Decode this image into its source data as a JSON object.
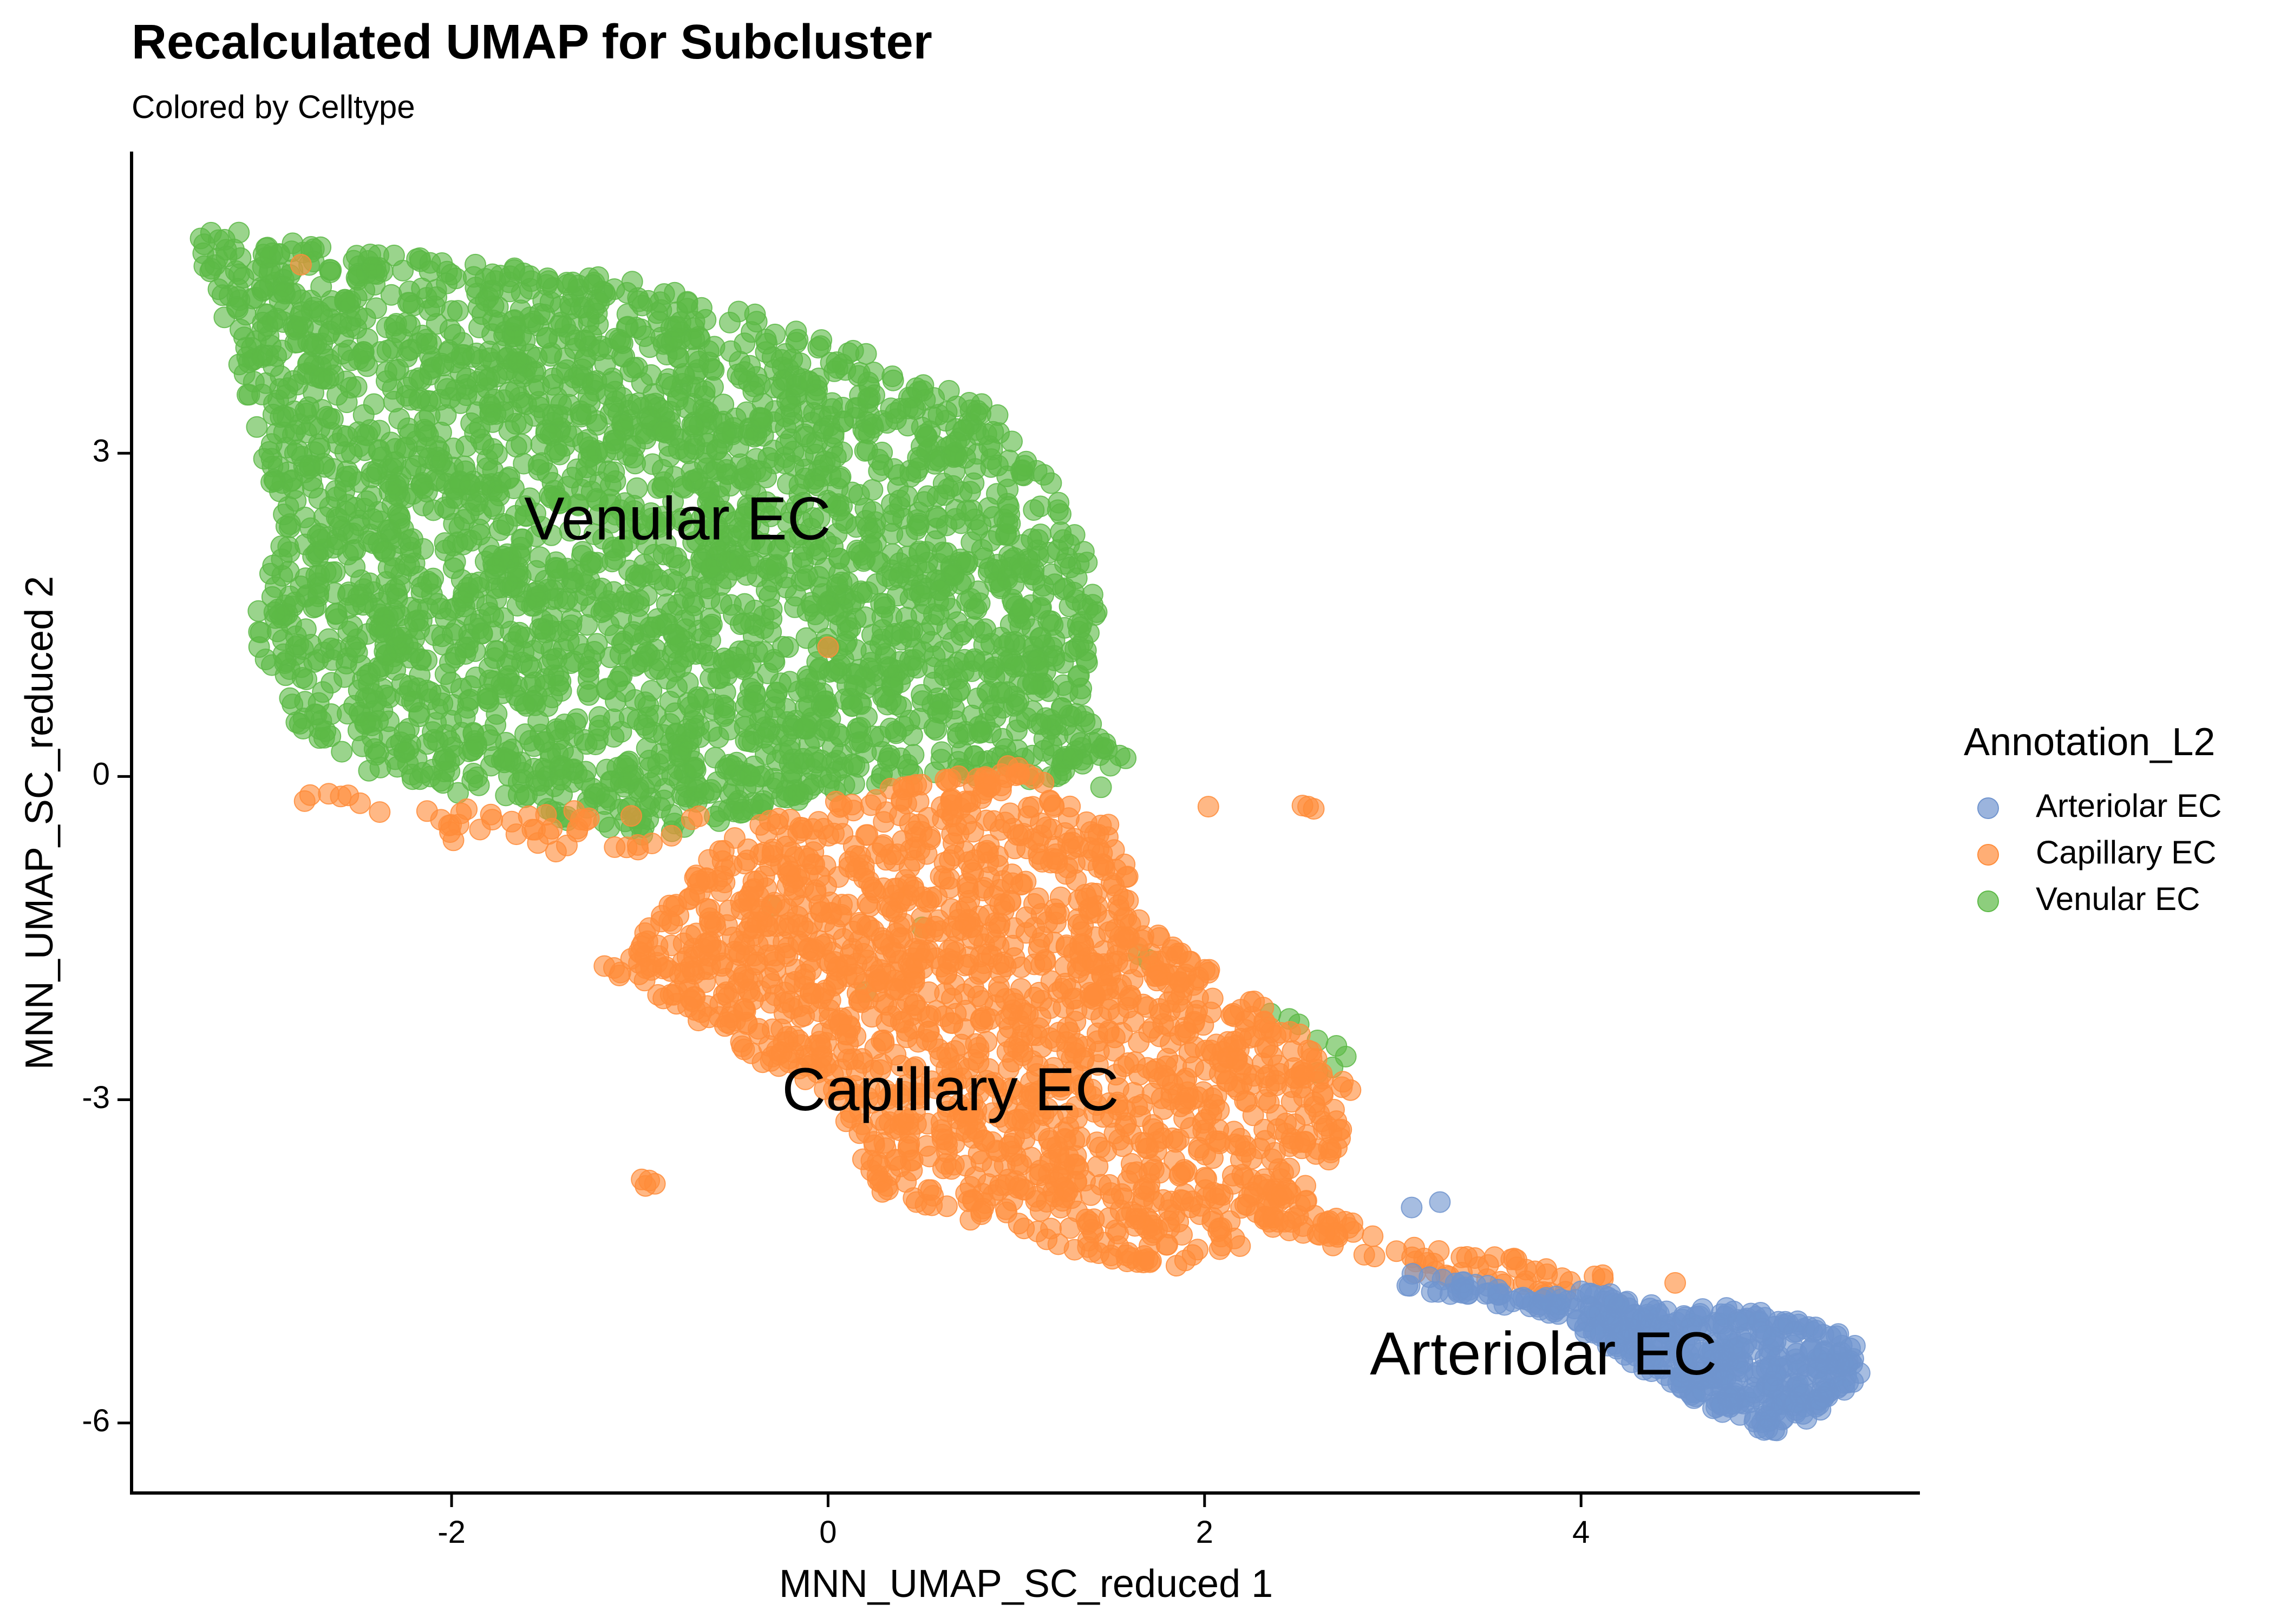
{
  "chart_data": {
    "type": "scatter",
    "title": "Recalculated UMAP for Subcluster",
    "subtitle": "Colored by Celltype",
    "xlabel": "MNN_UMAP_SC_reduced 1",
    "ylabel": "MNN_UMAP_SC_reduced 2",
    "xlim": [
      -3.7,
      5.8
    ],
    "ylim": [
      -6.65,
      5.8
    ],
    "x_ticks": [
      -2,
      0,
      2,
      4
    ],
    "y_ticks": [
      -6,
      -3,
      0,
      3
    ],
    "x_tick_labels": [
      "-2",
      "0",
      "2",
      "4"
    ],
    "y_tick_labels": [
      "-6",
      "-3",
      "0",
      "3"
    ],
    "grid": false,
    "legend": {
      "title": "Annotation_L2",
      "position": "right",
      "entries": [
        "Arteriolar EC",
        "Capillary EC",
        "Venular EC"
      ]
    },
    "series": [
      {
        "name": "Arteriolar EC",
        "color": "#7094CE",
        "label": "Arteriolar EC",
        "label_position": [
          3.8,
          -5.4
        ],
        "regions": [
          {
            "polygon": [
              [
                4.0,
                -4.75
              ],
              [
                4.5,
                -4.9
              ],
              [
                5.0,
                -4.95
              ],
              [
                5.45,
                -5.2
              ],
              [
                5.5,
                -5.55
              ],
              [
                5.2,
                -6.0
              ],
              [
                5.0,
                -6.1
              ],
              [
                4.6,
                -5.8
              ],
              [
                4.1,
                -5.25
              ],
              [
                3.8,
                -4.95
              ]
            ],
            "count": 420
          },
          {
            "polygon": [
              [
                3.05,
                -4.6
              ],
              [
                3.6,
                -4.75
              ],
              [
                4.0,
                -4.85
              ],
              [
                3.9,
                -5.0
              ],
              [
                3.4,
                -4.85
              ],
              [
                3.05,
                -4.75
              ]
            ],
            "count": 45
          }
        ],
        "points": [
          [
            3.1,
            -4.0
          ],
          [
            3.25,
            -3.95
          ],
          [
            4.55,
            -5.25
          ],
          [
            5.3,
            -5.45
          ]
        ]
      },
      {
        "name": "Capillary EC",
        "color": "#FF8C3A",
        "label": "Capillary EC",
        "label_position": [
          0.65,
          -2.95
        ],
        "regions": [
          {
            "polygon": [
              [
                -1.0,
                -1.5
              ],
              [
                -0.5,
                -0.5
              ],
              [
                0.3,
                -0.1
              ],
              [
                1.0,
                0.15
              ],
              [
                1.5,
                -0.45
              ],
              [
                1.7,
                -1.4
              ],
              [
                2.3,
                -2.1
              ],
              [
                2.8,
                -2.8
              ],
              [
                2.7,
                -3.5
              ],
              [
                2.25,
                -4.35
              ],
              [
                1.75,
                -4.6
              ],
              [
                1.1,
                -4.3
              ],
              [
                0.3,
                -3.9
              ],
              [
                0.0,
                -3.0
              ],
              [
                -0.5,
                -2.5
              ],
              [
                -1.2,
                -1.75
              ]
            ],
            "count": 1700
          },
          {
            "polygon": [
              [
                2.3,
                -3.7
              ],
              [
                3.0,
                -4.3
              ],
              [
                3.75,
                -4.5
              ],
              [
                4.2,
                -4.65
              ],
              [
                3.9,
                -4.85
              ],
              [
                3.1,
                -4.6
              ],
              [
                2.3,
                -4.2
              ]
            ],
            "count": 85
          },
          {
            "polygon": [
              [
                -2.8,
                -0.05
              ],
              [
                -2.2,
                -0.3
              ],
              [
                -1.3,
                -0.3
              ],
              [
                -0.6,
                -0.35
              ],
              [
                -0.7,
                -0.7
              ],
              [
                -1.5,
                -0.7
              ],
              [
                -2.3,
                -0.55
              ],
              [
                -2.8,
                -0.3
              ]
            ],
            "count": 45
          }
        ],
        "points": [
          [
            -0.95,
            -3.75
          ],
          [
            -0.97,
            -3.8
          ],
          [
            -0.92,
            -3.78
          ],
          [
            -0.99,
            -3.74
          ],
          [
            2.55,
            -0.28
          ],
          [
            2.58,
            -0.3
          ],
          [
            2.52,
            -0.27
          ],
          [
            2.02,
            -0.28
          ],
          [
            -2.8,
            4.75
          ],
          [
            0.0,
            1.2
          ],
          [
            4.2,
            -4.9
          ],
          [
            4.5,
            -4.7
          ]
        ]
      },
      {
        "name": "Venular EC",
        "color": "#5CB946",
        "label": "Venular EC",
        "label_position": [
          -0.8,
          2.35
        ],
        "regions": [
          {
            "polygon": [
              [
                -3.35,
                5.15
              ],
              [
                -2.6,
                4.9
              ],
              [
                -1.8,
                4.75
              ],
              [
                -1.0,
                4.6
              ],
              [
                0.0,
                4.1
              ],
              [
                0.9,
                3.4
              ],
              [
                1.3,
                2.5
              ],
              [
                1.45,
                1.5
              ],
              [
                1.35,
                0.6
              ],
              [
                1.6,
                0.15
              ],
              [
                1.2,
                -0.1
              ],
              [
                0.6,
                0.05
              ],
              [
                -0.3,
                -0.3
              ],
              [
                -0.9,
                -0.6
              ],
              [
                -1.4,
                -0.4
              ],
              [
                -2.0,
                -0.15
              ],
              [
                -2.55,
                0.1
              ],
              [
                -2.9,
                0.6
              ],
              [
                -3.1,
                1.3
              ],
              [
                -2.9,
                2.2
              ],
              [
                -3.05,
                3.2
              ],
              [
                -3.2,
                4.2
              ],
              [
                -3.35,
                4.8
              ]
            ],
            "count": 3000
          }
        ],
        "points": [
          [
            2.35,
            -2.2
          ],
          [
            2.45,
            -2.25
          ],
          [
            2.5,
            -2.3
          ],
          [
            2.6,
            -2.45
          ],
          [
            2.7,
            -2.5
          ],
          [
            2.75,
            -2.6
          ],
          [
            2.68,
            -2.7
          ],
          [
            2.6,
            -2.75
          ],
          [
            1.65,
            -1.65
          ],
          [
            1.7,
            -1.7
          ],
          [
            1.45,
            -0.1
          ],
          [
            1.5,
            0.1
          ],
          [
            0.5,
            -1.4
          ],
          [
            -0.3,
            -1.2
          ],
          [
            0.2,
            -2.0
          ],
          [
            -1.0,
            -0.45
          ]
        ]
      }
    ]
  }
}
